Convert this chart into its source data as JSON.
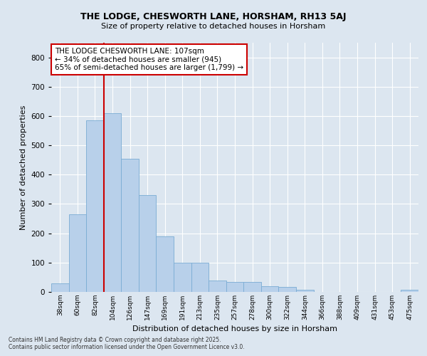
{
  "title_line1": "THE LODGE, CHESWORTH LANE, HORSHAM, RH13 5AJ",
  "title_line2": "Size of property relative to detached houses in Horsham",
  "xlabel": "Distribution of detached houses by size in Horsham",
  "ylabel": "Number of detached properties",
  "categories": [
    "38sqm",
    "60sqm",
    "82sqm",
    "104sqm",
    "126sqm",
    "147sqm",
    "169sqm",
    "191sqm",
    "213sqm",
    "235sqm",
    "257sqm",
    "278sqm",
    "300sqm",
    "322sqm",
    "344sqm",
    "366sqm",
    "388sqm",
    "409sqm",
    "431sqm",
    "453sqm",
    "475sqm"
  ],
  "values": [
    28,
    265,
    585,
    610,
    455,
    330,
    190,
    100,
    100,
    38,
    35,
    35,
    20,
    18,
    8,
    0,
    0,
    0,
    0,
    0,
    8
  ],
  "bar_color": "#b8d0ea",
  "bar_edge_color": "#7aacd4",
  "vline_x_index": 3,
  "vline_color": "#cc0000",
  "annotation_text": "THE LODGE CHESWORTH LANE: 107sqm\n← 34% of detached houses are smaller (945)\n65% of semi-detached houses are larger (1,799) →",
  "annotation_box_facecolor": "#ffffff",
  "annotation_box_edgecolor": "#cc0000",
  "ylim": [
    0,
    850
  ],
  "yticks": [
    0,
    100,
    200,
    300,
    400,
    500,
    600,
    700,
    800
  ],
  "background_color": "#dce6f0",
  "grid_color": "#ffffff",
  "footer_line1": "Contains HM Land Registry data © Crown copyright and database right 2025.",
  "footer_line2": "Contains public sector information licensed under the Open Government Licence v3.0."
}
